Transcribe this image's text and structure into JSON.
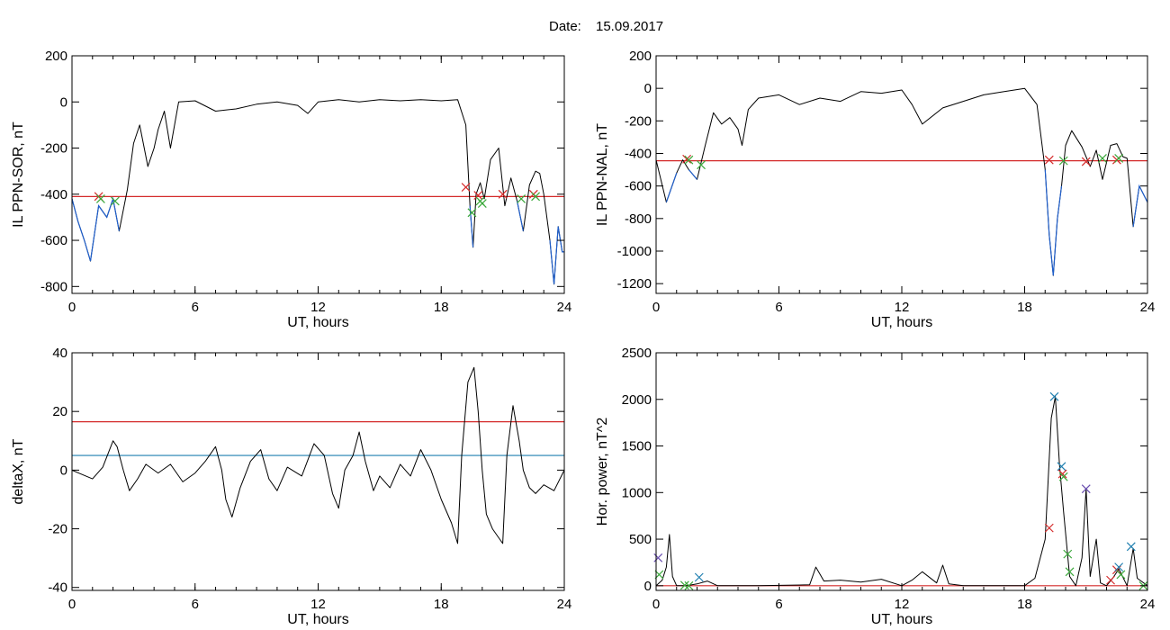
{
  "figure": {
    "date_label": "Date:",
    "date_value": "15.09.2017"
  },
  "chart_data": [
    {
      "type": "line",
      "panel": "top-left",
      "xlabel": "UT, hours",
      "ylabel": "IL PPN-SOR, nT",
      "xlim": [
        0,
        24
      ],
      "ylim": [
        -830,
        200
      ],
      "xticks": [
        0,
        6,
        12,
        18,
        24
      ],
      "yticks": [
        -800,
        -600,
        -400,
        -200,
        0,
        200
      ],
      "colors": {
        "trace": "#000000",
        "active_trace": "#1f5fcc",
        "threshold": "#d42a2a"
      },
      "hlines": [
        {
          "y": -410,
          "color": "#d42a2a"
        }
      ],
      "series": [
        {
          "x": [
            0,
            0.3,
            0.6,
            0.9,
            1.3,
            1.7,
            2.0,
            2.3,
            2.7,
            3.0,
            3.3,
            3.7,
            4.0,
            4.2,
            4.5,
            4.8,
            5.2,
            6.0,
            7.0,
            8.0,
            9.0,
            10.0,
            11.0,
            11.5,
            12.0,
            13.0,
            14.0,
            15.0,
            16.0,
            17.0,
            18.0,
            18.8,
            19.2,
            19.4,
            19.55,
            19.7,
            19.9,
            20.1,
            20.4,
            20.8,
            21.1,
            21.4,
            21.7,
            22.0,
            22.3,
            22.6,
            22.8,
            23.0,
            23.3,
            23.5,
            23.7,
            23.9,
            24.0
          ],
          "y": [
            -420,
            -520,
            -600,
            -690,
            -450,
            -500,
            -420,
            -560,
            -380,
            -180,
            -100,
            -280,
            -200,
            -120,
            -40,
            -200,
            0,
            5,
            -40,
            -30,
            -10,
            0,
            -15,
            -50,
            0,
            10,
            0,
            10,
            5,
            10,
            5,
            10,
            -100,
            -450,
            -630,
            -400,
            -350,
            -420,
            -250,
            -200,
            -450,
            -330,
            -430,
            -560,
            -360,
            -300,
            -310,
            -400,
            -600,
            -790,
            -540,
            -650,
            -650
          ]
        }
      ],
      "markers": [
        {
          "x": 1.3,
          "y": -410,
          "color": "#d42a2a"
        },
        {
          "x": 1.4,
          "y": -420,
          "color": "#3aa83a"
        },
        {
          "x": 2.1,
          "y": -430,
          "color": "#3aa83a"
        },
        {
          "x": 19.2,
          "y": -370,
          "color": "#d42a2a"
        },
        {
          "x": 19.5,
          "y": -480,
          "color": "#3aa83a"
        },
        {
          "x": 19.8,
          "y": -405,
          "color": "#d42a2a"
        },
        {
          "x": 19.9,
          "y": -430,
          "color": "#3aa83a"
        },
        {
          "x": 20.0,
          "y": -440,
          "color": "#3aa83a"
        },
        {
          "x": 21.0,
          "y": -400,
          "color": "#d42a2a"
        },
        {
          "x": 21.9,
          "y": -420,
          "color": "#3aa83a"
        },
        {
          "x": 22.5,
          "y": -400,
          "color": "#d42a2a"
        },
        {
          "x": 22.6,
          "y": -410,
          "color": "#3aa83a"
        }
      ]
    },
    {
      "type": "line",
      "panel": "top-right",
      "xlabel": "UT, hours",
      "ylabel": "IL PPN-NAL, nT",
      "xlim": [
        0,
        24
      ],
      "ylim": [
        -1260,
        200
      ],
      "xticks": [
        0,
        6,
        12,
        18,
        24
      ],
      "yticks": [
        -1200,
        -1000,
        -800,
        -600,
        -400,
        -200,
        0,
        200
      ],
      "colors": {
        "trace": "#000000",
        "active_trace": "#1f5fcc",
        "threshold": "#d42a2a"
      },
      "hlines": [
        {
          "y": -445,
          "color": "#d42a2a"
        }
      ],
      "series": [
        {
          "x": [
            0,
            0.5,
            1.0,
            1.3,
            1.6,
            2.0,
            2.4,
            2.8,
            3.2,
            3.6,
            4.0,
            4.2,
            4.5,
            5.0,
            6.0,
            7.0,
            8.0,
            9.0,
            10.0,
            11.0,
            12.0,
            12.5,
            13.0,
            14.0,
            15.0,
            16.0,
            17.0,
            18.0,
            18.6,
            19.0,
            19.2,
            19.4,
            19.6,
            19.8,
            20.0,
            20.3,
            20.8,
            21.2,
            21.5,
            21.8,
            22.2,
            22.5,
            22.8,
            23.0,
            23.3,
            23.6,
            24.0
          ],
          "y": [
            -440,
            -700,
            -520,
            -440,
            -500,
            -560,
            -350,
            -150,
            -220,
            -180,
            -250,
            -350,
            -130,
            -60,
            -40,
            -100,
            -60,
            -80,
            -20,
            -30,
            -10,
            -100,
            -220,
            -120,
            -80,
            -40,
            -20,
            0,
            -100,
            -500,
            -900,
            -1150,
            -800,
            -600,
            -350,
            -260,
            -360,
            -480,
            -380,
            -560,
            -350,
            -340,
            -420,
            -430,
            -850,
            -600,
            -700
          ]
        }
      ],
      "markers": [
        {
          "x": 1.5,
          "y": -435,
          "color": "#d42a2a"
        },
        {
          "x": 1.6,
          "y": -440,
          "color": "#3aa83a"
        },
        {
          "x": 2.2,
          "y": -470,
          "color": "#3aa83a"
        },
        {
          "x": 19.2,
          "y": -440,
          "color": "#d42a2a"
        },
        {
          "x": 19.9,
          "y": -445,
          "color": "#3aa83a"
        },
        {
          "x": 21.0,
          "y": -450,
          "color": "#d42a2a"
        },
        {
          "x": 21.8,
          "y": -430,
          "color": "#3aa83a"
        },
        {
          "x": 22.5,
          "y": -440,
          "color": "#d42a2a"
        },
        {
          "x": 22.6,
          "y": -430,
          "color": "#3aa83a"
        }
      ]
    },
    {
      "type": "line",
      "panel": "bottom-left",
      "xlabel": "UT, hours",
      "ylabel": "deltaX, nT",
      "xlim": [
        0,
        24
      ],
      "ylim": [
        -41,
        40
      ],
      "xticks": [
        0,
        6,
        12,
        18,
        24
      ],
      "yticks": [
        -40,
        -20,
        0,
        20,
        40
      ],
      "colors": {
        "trace": "#000000",
        "upper_threshold": "#d42a2a",
        "lower_threshold": "#1f7fb0"
      },
      "hlines": [
        {
          "y": 16.5,
          "color": "#d42a2a"
        },
        {
          "y": 5,
          "color": "#1f7fb0"
        }
      ],
      "series": [
        {
          "x": [
            0,
            1.0,
            1.5,
            2.0,
            2.2,
            2.5,
            2.8,
            3.2,
            3.6,
            4.2,
            4.8,
            5.4,
            6.0,
            6.5,
            7.0,
            7.3,
            7.5,
            7.8,
            8.2,
            8.7,
            9.2,
            9.6,
            10.0,
            10.5,
            11.2,
            11.8,
            12.3,
            12.7,
            13.0,
            13.3,
            13.7,
            14.0,
            14.3,
            14.7,
            15.0,
            15.5,
            16.0,
            16.5,
            17.0,
            17.5,
            18.0,
            18.5,
            18.8,
            19.0,
            19.3,
            19.6,
            19.8,
            20.0,
            20.2,
            20.5,
            21.0,
            21.2,
            21.5,
            21.8,
            22.0,
            22.3,
            22.6,
            23.0,
            23.5,
            24.0
          ],
          "y": [
            0,
            -3,
            1,
            10,
            8,
            0,
            -7,
            -3,
            2,
            -1,
            2,
            -4,
            -1,
            3,
            8,
            0,
            -10,
            -16,
            -6,
            3,
            7,
            -3,
            -7,
            1,
            -2,
            9,
            5,
            -8,
            -13,
            0,
            5,
            13,
            3,
            -7,
            -2,
            -6,
            2,
            -2,
            7,
            0,
            -10,
            -18,
            -25,
            5,
            30,
            35,
            20,
            0,
            -15,
            -20,
            -25,
            5,
            22,
            10,
            0,
            -6,
            -8,
            -5,
            -7,
            0
          ]
        }
      ],
      "markers": []
    },
    {
      "type": "line",
      "panel": "bottom-right",
      "xlabel": "UT, hours",
      "ylabel": "Hor. power, nT^2",
      "xlim": [
        0,
        24
      ],
      "ylim": [
        -50,
        2500
      ],
      "xticks": [
        0,
        6,
        12,
        18,
        24
      ],
      "yticks": [
        0,
        500,
        1000,
        1500,
        2000,
        2500
      ],
      "colors": {
        "trace": "#000000",
        "threshold": "#d42a2a"
      },
      "hlines": [
        {
          "y": 0,
          "color": "#d42a2a"
        }
      ],
      "series": [
        {
          "x": [
            0,
            0.3,
            0.5,
            0.65,
            0.8,
            1.0,
            1.5,
            2.0,
            2.5,
            3.0,
            5.0,
            7.5,
            7.8,
            8.2,
            9.0,
            10.0,
            11.0,
            12.0,
            12.5,
            13.0,
            13.7,
            14.0,
            14.3,
            15.0,
            18.0,
            18.5,
            19.0,
            19.3,
            19.5,
            19.7,
            19.9,
            20.2,
            20.5,
            20.8,
            21.0,
            21.2,
            21.5,
            21.7,
            22.0,
            22.3,
            22.6,
            23.0,
            23.3,
            23.5,
            24.0
          ],
          "y": [
            0,
            60,
            200,
            550,
            100,
            0,
            0,
            20,
            50,
            0,
            0,
            10,
            200,
            50,
            60,
            40,
            70,
            0,
            60,
            150,
            30,
            220,
            20,
            0,
            0,
            80,
            500,
            1800,
            2030,
            1300,
            800,
            100,
            0,
            300,
            1040,
            100,
            500,
            30,
            0,
            80,
            180,
            0,
            400,
            80,
            0
          ]
        }
      ],
      "markers": [
        {
          "x": 0.1,
          "y": 300,
          "color": "#6a4fb0"
        },
        {
          "x": 0.15,
          "y": 120,
          "color": "#3aa83a"
        },
        {
          "x": 1.4,
          "y": 5,
          "color": "#3aa83a"
        },
        {
          "x": 1.6,
          "y": 0,
          "color": "#3aa83a"
        },
        {
          "x": 2.1,
          "y": 90,
          "color": "#1f7fb0"
        },
        {
          "x": 19.2,
          "y": 620,
          "color": "#d42a2a"
        },
        {
          "x": 19.45,
          "y": 2030,
          "color": "#1f7fb0"
        },
        {
          "x": 19.8,
          "y": 1280,
          "color": "#1f7fb0"
        },
        {
          "x": 19.85,
          "y": 1200,
          "color": "#d42a2a"
        },
        {
          "x": 19.9,
          "y": 1170,
          "color": "#3aa83a"
        },
        {
          "x": 20.1,
          "y": 340,
          "color": "#3aa83a"
        },
        {
          "x": 20.2,
          "y": 150,
          "color": "#3aa83a"
        },
        {
          "x": 21.0,
          "y": 1040,
          "color": "#6a4fb0"
        },
        {
          "x": 22.2,
          "y": 60,
          "color": "#d42a2a"
        },
        {
          "x": 22.5,
          "y": 170,
          "color": "#d42a2a"
        },
        {
          "x": 22.6,
          "y": 200,
          "color": "#1f7fb0"
        },
        {
          "x": 22.7,
          "y": 120,
          "color": "#3aa83a"
        },
        {
          "x": 23.2,
          "y": 420,
          "color": "#1f7fb0"
        },
        {
          "x": 23.8,
          "y": 0,
          "color": "#3aa83a"
        }
      ]
    }
  ]
}
